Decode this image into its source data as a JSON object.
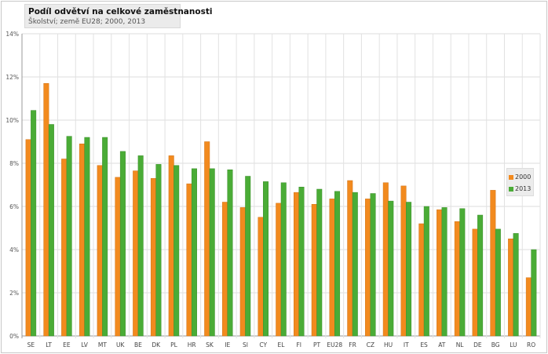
{
  "chart_data": {
    "type": "bar",
    "title": "Podíl odvětví na celkové zaměstnanosti",
    "subtitle": "Školství; země EU28; 2000, 2013",
    "xlabel": "",
    "ylabel": "",
    "ylim": [
      0,
      14
    ],
    "yticks": [
      "0%",
      "2%",
      "4%",
      "6%",
      "8%",
      "10%",
      "12%",
      "14%"
    ],
    "grid": true,
    "legend_position": "right",
    "categories": [
      "SE",
      "LT",
      "EE",
      "LV",
      "MT",
      "UK",
      "BE",
      "DK",
      "PL",
      "HR",
      "SK",
      "IE",
      "SI",
      "CY",
      "EL",
      "FI",
      "PT",
      "EU28",
      "FR",
      "CZ",
      "HU",
      "IT",
      "ES",
      "AT",
      "NL",
      "DE",
      "BG",
      "LU",
      "RO"
    ],
    "series": [
      {
        "name": "2000",
        "color": "#f28a1e",
        "values": [
          9.1,
          11.7,
          8.2,
          8.9,
          7.9,
          7.35,
          7.65,
          7.3,
          8.35,
          7.05,
          9.0,
          6.2,
          5.95,
          5.5,
          6.15,
          6.65,
          6.1,
          6.35,
          7.2,
          6.35,
          7.1,
          6.95,
          5.2,
          5.85,
          5.3,
          4.95,
          6.75,
          4.5,
          2.7
        ]
      },
      {
        "name": "2013",
        "color": "#4aac36",
        "values": [
          10.45,
          9.8,
          9.25,
          9.2,
          9.2,
          8.55,
          8.35,
          7.95,
          7.9,
          7.75,
          7.75,
          7.7,
          7.4,
          7.15,
          7.1,
          6.9,
          6.8,
          6.7,
          6.65,
          6.6,
          6.25,
          6.2,
          6.0,
          5.95,
          5.9,
          5.6,
          4.95,
          4.75,
          4.0
        ]
      }
    ]
  }
}
